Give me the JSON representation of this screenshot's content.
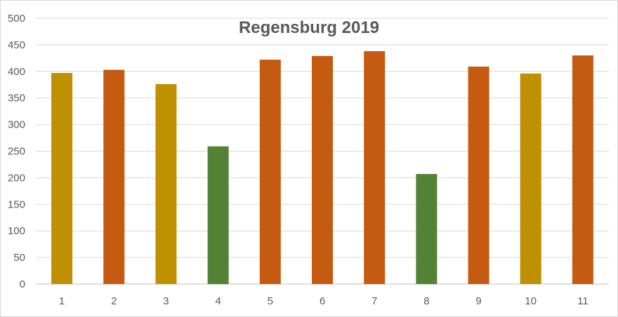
{
  "chart_data": {
    "type": "bar",
    "title": "Regensburg 2019",
    "xlabel": "",
    "ylabel": "",
    "categories": [
      "1",
      "2",
      "3",
      "4",
      "5",
      "6",
      "7",
      "8",
      "9",
      "10",
      "11"
    ],
    "values": [
      397,
      403,
      376,
      259,
      422,
      429,
      438,
      207,
      409,
      396,
      430
    ],
    "bar_colors": [
      "#BF9000",
      "#C55A11",
      "#BF9000",
      "#548235",
      "#C55A11",
      "#C55A11",
      "#C55A11",
      "#548235",
      "#C55A11",
      "#BF9000",
      "#C55A11"
    ],
    "ylim": [
      0,
      500
    ],
    "yticks": [
      0,
      50,
      100,
      150,
      200,
      250,
      300,
      350,
      400,
      450,
      500
    ],
    "grid": true,
    "legend": "none",
    "colors": {
      "gridline": "#d9d9d9",
      "axis_text": "#595959",
      "title": "#595959"
    }
  }
}
